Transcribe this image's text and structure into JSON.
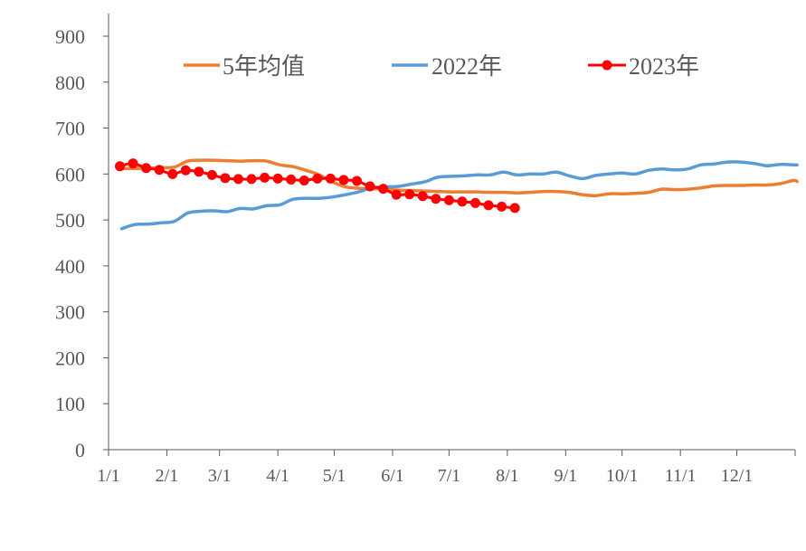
{
  "chart_data": {
    "type": "line",
    "title": "",
    "xlabel": "",
    "ylabel": "",
    "ylim": [
      0,
      900
    ],
    "y_ticks": [
      0,
      100,
      200,
      300,
      400,
      500,
      600,
      700,
      800,
      900
    ],
    "x_tick_labels": [
      "1/1",
      "2/1",
      "3/1",
      "4/1",
      "5/1",
      "6/1",
      "7/1",
      "8/1",
      "9/1",
      "10/1",
      "11/1",
      "12/1"
    ],
    "x_tick_days": [
      0,
      31,
      59,
      90,
      120,
      151,
      181,
      212,
      243,
      273,
      304,
      334
    ],
    "x_range_days": [
      0,
      365
    ],
    "grid": false,
    "legend_position": "top",
    "series": [
      {
        "name": "5年均值",
        "color": "#ED7D31",
        "markers": false,
        "points": [
          [
            7,
            612
          ],
          [
            14,
            612
          ],
          [
            21,
            613
          ],
          [
            28,
            614
          ],
          [
            35,
            615
          ],
          [
            42,
            628
          ],
          [
            49,
            630
          ],
          [
            56,
            630
          ],
          [
            63,
            629
          ],
          [
            70,
            628
          ],
          [
            77,
            629
          ],
          [
            84,
            628
          ],
          [
            91,
            620
          ],
          [
            98,
            616
          ],
          [
            105,
            608
          ],
          [
            112,
            598
          ],
          [
            119,
            583
          ],
          [
            126,
            572
          ],
          [
            133,
            569
          ],
          [
            140,
            568
          ],
          [
            147,
            567
          ],
          [
            154,
            565
          ],
          [
            161,
            564
          ],
          [
            168,
            563
          ],
          [
            175,
            562
          ],
          [
            182,
            561
          ],
          [
            189,
            561
          ],
          [
            196,
            561
          ],
          [
            203,
            560
          ],
          [
            210,
            560
          ],
          [
            217,
            559
          ],
          [
            224,
            560
          ],
          [
            231,
            562
          ],
          [
            238,
            562
          ],
          [
            245,
            560
          ],
          [
            252,
            555
          ],
          [
            259,
            553
          ],
          [
            266,
            557
          ],
          [
            273,
            557
          ],
          [
            280,
            558
          ],
          [
            287,
            560
          ],
          [
            294,
            567
          ],
          [
            301,
            566
          ],
          [
            308,
            567
          ],
          [
            315,
            570
          ],
          [
            322,
            574
          ],
          [
            329,
            575
          ],
          [
            336,
            575
          ],
          [
            343,
            576
          ],
          [
            350,
            576
          ],
          [
            357,
            579
          ],
          [
            364,
            586
          ],
          [
            366,
            584
          ]
        ]
      },
      {
        "name": "2022年",
        "color": "#5B9BD5",
        "markers": false,
        "points": [
          [
            7,
            481
          ],
          [
            14,
            490
          ],
          [
            21,
            491
          ],
          [
            28,
            494
          ],
          [
            35,
            497
          ],
          [
            42,
            515
          ],
          [
            49,
            519
          ],
          [
            56,
            520
          ],
          [
            63,
            518
          ],
          [
            70,
            525
          ],
          [
            77,
            524
          ],
          [
            84,
            531
          ],
          [
            91,
            533
          ],
          [
            98,
            545
          ],
          [
            105,
            547
          ],
          [
            112,
            547
          ],
          [
            119,
            550
          ],
          [
            126,
            555
          ],
          [
            133,
            561
          ],
          [
            140,
            570
          ],
          [
            147,
            572
          ],
          [
            154,
            573
          ],
          [
            161,
            578
          ],
          [
            168,
            583
          ],
          [
            175,
            593
          ],
          [
            182,
            595
          ],
          [
            189,
            596
          ],
          [
            196,
            598
          ],
          [
            203,
            598
          ],
          [
            210,
            604
          ],
          [
            217,
            598
          ],
          [
            224,
            600
          ],
          [
            231,
            600
          ],
          [
            238,
            604
          ],
          [
            245,
            596
          ],
          [
            252,
            590
          ],
          [
            259,
            597
          ],
          [
            266,
            600
          ],
          [
            273,
            602
          ],
          [
            280,
            600
          ],
          [
            287,
            608
          ],
          [
            294,
            611
          ],
          [
            301,
            609
          ],
          [
            308,
            611
          ],
          [
            315,
            620
          ],
          [
            322,
            622
          ],
          [
            329,
            626
          ],
          [
            336,
            626
          ],
          [
            343,
            623
          ],
          [
            350,
            618
          ],
          [
            357,
            621
          ],
          [
            364,
            620
          ],
          [
            366,
            620
          ]
        ]
      },
      {
        "name": "2023年",
        "color": "#FF0000",
        "markers": true,
        "points": [
          [
            6,
            617
          ],
          [
            13,
            623
          ],
          [
            20,
            613
          ],
          [
            27,
            609
          ],
          [
            34,
            600
          ],
          [
            41,
            608
          ],
          [
            48,
            605
          ],
          [
            55,
            598
          ],
          [
            62,
            591
          ],
          [
            69,
            589
          ],
          [
            76,
            589
          ],
          [
            83,
            592
          ],
          [
            90,
            590
          ],
          [
            97,
            588
          ],
          [
            104,
            586
          ],
          [
            111,
            590
          ],
          [
            118,
            590
          ],
          [
            125,
            587
          ],
          [
            132,
            585
          ],
          [
            139,
            573
          ],
          [
            146,
            568
          ],
          [
            153,
            555
          ],
          [
            160,
            556
          ],
          [
            167,
            552
          ],
          [
            174,
            546
          ],
          [
            181,
            543
          ],
          [
            188,
            540
          ],
          [
            195,
            537
          ],
          [
            202,
            532
          ],
          [
            209,
            529
          ],
          [
            216,
            526
          ]
        ]
      }
    ]
  }
}
